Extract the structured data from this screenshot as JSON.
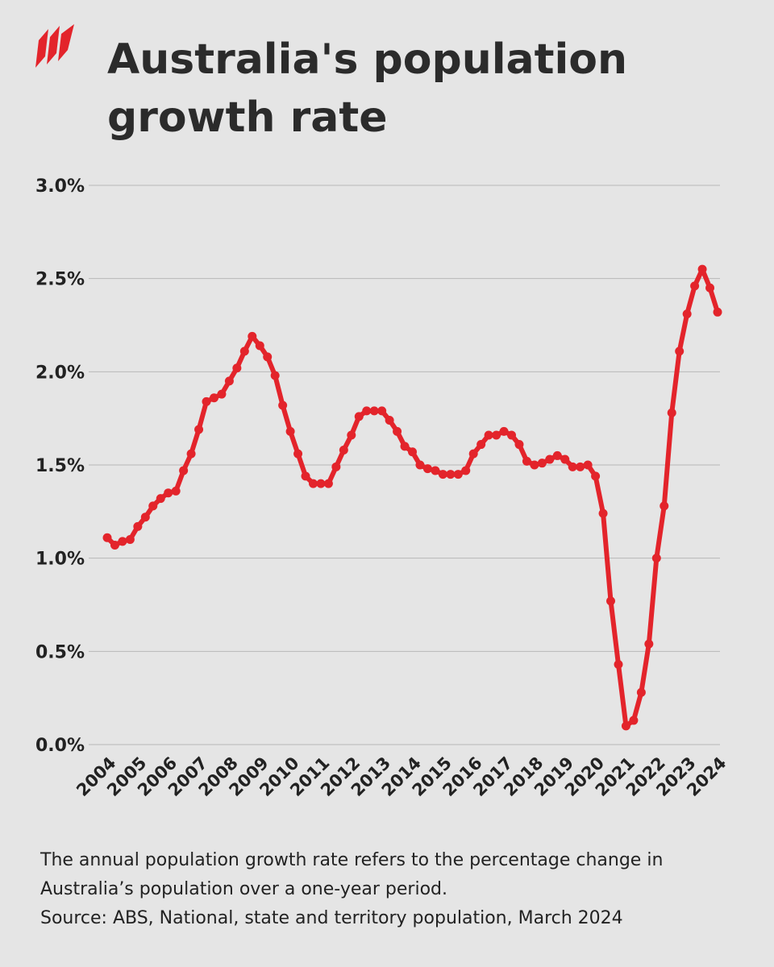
{
  "chart_data": {
    "type": "line",
    "title": "Australia's population growth rate",
    "note": "The annual population growth rate refers to the percentage change in Australia’s population over a one-year period.",
    "source": "Source: ABS, National, state and territory population, March 2024",
    "x": [
      2004,
      2004.25,
      2004.5,
      2004.75,
      2005,
      2005.25,
      2005.5,
      2005.75,
      2006,
      2006.25,
      2006.5,
      2006.75,
      2007,
      2007.25,
      2007.5,
      2007.75,
      2008,
      2008.25,
      2008.5,
      2008.75,
      2009,
      2009.25,
      2009.5,
      2009.75,
      2010,
      2010.25,
      2010.5,
      2010.75,
      2011,
      2011.25,
      2011.5,
      2011.75,
      2012,
      2012.25,
      2012.5,
      2012.75,
      2013,
      2013.25,
      2013.5,
      2013.75,
      2014,
      2014.25,
      2014.5,
      2014.75,
      2015,
      2015.25,
      2015.5,
      2015.75,
      2016,
      2016.25,
      2016.5,
      2016.75,
      2017,
      2017.25,
      2017.5,
      2017.75,
      2018,
      2018.25,
      2018.5,
      2018.75,
      2019,
      2019.25,
      2019.5,
      2019.75,
      2020,
      2020.25,
      2020.5,
      2020.75,
      2021,
      2021.25,
      2021.5,
      2021.75,
      2022,
      2022.25,
      2022.5,
      2022.75,
      2023,
      2023.25,
      2023.5,
      2023.75,
      2024
    ],
    "series": [
      {
        "color": "#e3242b",
        "values": [
          1.11,
          1.07,
          1.09,
          1.1,
          1.17,
          1.22,
          1.28,
          1.32,
          1.35,
          1.36,
          1.47,
          1.56,
          1.69,
          1.84,
          1.86,
          1.88,
          1.95,
          2.02,
          2.11,
          2.19,
          2.14,
          2.08,
          1.98,
          1.82,
          1.68,
          1.56,
          1.44,
          1.4,
          1.4,
          1.4,
          1.49,
          1.58,
          1.66,
          1.76,
          1.79,
          1.79,
          1.79,
          1.74,
          1.68,
          1.6,
          1.57,
          1.5,
          1.48,
          1.47,
          1.45,
          1.45,
          1.45,
          1.47,
          1.56,
          1.61,
          1.66,
          1.66,
          1.68,
          1.66,
          1.61,
          1.52,
          1.5,
          1.51,
          1.53,
          1.55,
          1.53,
          1.49,
          1.49,
          1.5,
          1.44,
          1.24,
          0.77,
          0.43,
          0.1,
          0.13,
          0.28,
          0.54,
          1.0,
          1.28,
          1.78,
          2.11,
          2.31,
          2.46,
          2.55,
          2.45,
          2.32
        ]
      }
    ],
    "xlim": [
      2004,
      2024
    ],
    "xticks": [
      2004,
      2005,
      2006,
      2007,
      2008,
      2009,
      2010,
      2011,
      2012,
      2013,
      2014,
      2015,
      2016,
      2017,
      2018,
      2019,
      2020,
      2021,
      2022,
      2023,
      2024
    ],
    "ylim": [
      0,
      3
    ],
    "yticks": [
      {
        "value": 0,
        "label": "0.0%"
      },
      {
        "value": 0.5,
        "label": "0.5%"
      },
      {
        "value": 1,
        "label": "1.0%"
      },
      {
        "value": 1.5,
        "label": "1.5%"
      },
      {
        "value": 2,
        "label": "2.0%"
      },
      {
        "value": 2.5,
        "label": "2.5%"
      },
      {
        "value": 3,
        "label": "3.0%"
      }
    ],
    "grid": true
  }
}
